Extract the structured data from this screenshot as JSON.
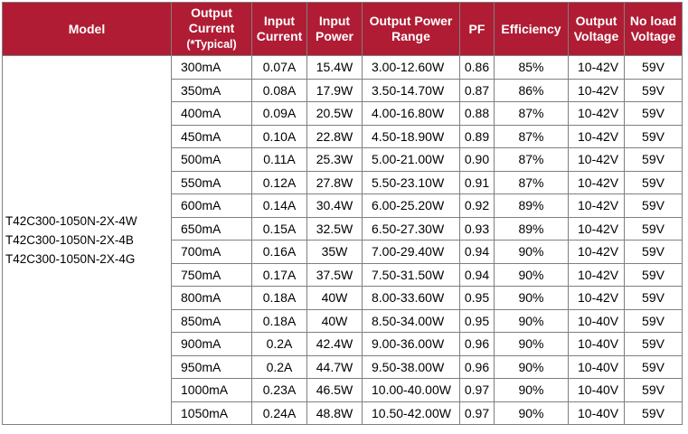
{
  "headers": {
    "model": "Model",
    "output_current_line1": "Output",
    "output_current_line2": "Current",
    "output_current_line3": "(*Typical)",
    "input_current_line1": "Input",
    "input_current_line2": "Current",
    "input_power_line1": "Input",
    "input_power_line2": "Power",
    "output_power_range_line1": "Output Power",
    "output_power_range_line2": "Range",
    "pf": "PF",
    "efficiency": "Efficiency",
    "output_voltage_line1": "Output",
    "output_voltage_line2": "Voltage",
    "no_load_voltage_line1": "No load",
    "no_load_voltage_line2": "Voltage"
  },
  "models": [
    "T42C300-1050N-2X-4W",
    "T42C300-1050N-2X-4B",
    "T42C300-1050N-2X-4G"
  ],
  "rows": [
    {
      "output_current": "300mA",
      "input_current": "0.07A",
      "input_power": "15.4W",
      "output_power_range": "3.00-12.60W",
      "pf": "0.86",
      "efficiency": "85%",
      "output_voltage": "10-42V",
      "no_load_voltage": "59V"
    },
    {
      "output_current": "350mA",
      "input_current": "0.08A",
      "input_power": "17.9W",
      "output_power_range": "3.50-14.70W",
      "pf": "0.87",
      "efficiency": "86%",
      "output_voltage": "10-42V",
      "no_load_voltage": "59V"
    },
    {
      "output_current": "400mA",
      "input_current": "0.09A",
      "input_power": "20.5W",
      "output_power_range": "4.00-16.80W",
      "pf": "0.88",
      "efficiency": "87%",
      "output_voltage": "10-42V",
      "no_load_voltage": "59V"
    },
    {
      "output_current": "450mA",
      "input_current": "0.10A",
      "input_power": "22.8W",
      "output_power_range": "4.50-18.90W",
      "pf": "0.89",
      "efficiency": "87%",
      "output_voltage": "10-42V",
      "no_load_voltage": "59V"
    },
    {
      "output_current": "500mA",
      "input_current": "0.11A",
      "input_power": "25.3W",
      "output_power_range": "5.00-21.00W",
      "pf": "0.90",
      "efficiency": "87%",
      "output_voltage": "10-42V",
      "no_load_voltage": "59V"
    },
    {
      "output_current": "550mA",
      "input_current": "0.12A",
      "input_power": "27.8W",
      "output_power_range": "5.50-23.10W",
      "pf": "0.91",
      "efficiency": "87%",
      "output_voltage": "10-42V",
      "no_load_voltage": "59V"
    },
    {
      "output_current": "600mA",
      "input_current": "0.14A",
      "input_power": "30.4W",
      "output_power_range": "6.00-25.20W",
      "pf": "0.92",
      "efficiency": "89%",
      "output_voltage": "10-42V",
      "no_load_voltage": "59V"
    },
    {
      "output_current": "650mA",
      "input_current": "0.15A",
      "input_power": "32.5W",
      "output_power_range": "6.50-27.30W",
      "pf": "0.93",
      "efficiency": "89%",
      "output_voltage": "10-42V",
      "no_load_voltage": "59V"
    },
    {
      "output_current": "700mA",
      "input_current": "0.16A",
      "input_power": "35W",
      "output_power_range": "7.00-29.40W",
      "pf": "0.94",
      "efficiency": "90%",
      "output_voltage": "10-42V",
      "no_load_voltage": "59V"
    },
    {
      "output_current": "750mA",
      "input_current": "0.17A",
      "input_power": "37.5W",
      "output_power_range": "7.50-31.50W",
      "pf": "0.94",
      "efficiency": "90%",
      "output_voltage": "10-42V",
      "no_load_voltage": "59V"
    },
    {
      "output_current": "800mA",
      "input_current": "0.18A",
      "input_power": "40W",
      "output_power_range": "8.00-33.60W",
      "pf": "0.95",
      "efficiency": "90%",
      "output_voltage": "10-42V",
      "no_load_voltage": "59V"
    },
    {
      "output_current": "850mA",
      "input_current": "0.18A",
      "input_power": "40W",
      "output_power_range": "8.50-34.00W",
      "pf": "0.95",
      "efficiency": "90%",
      "output_voltage": "10-40V",
      "no_load_voltage": "59V"
    },
    {
      "output_current": "900mA",
      "input_current": "0.2A",
      "input_power": "42.4W",
      "output_power_range": "9.00-36.00W",
      "pf": "0.96",
      "efficiency": "90%",
      "output_voltage": "10-40V",
      "no_load_voltage": "59V"
    },
    {
      "output_current": "950mA",
      "input_current": "0.2A",
      "input_power": "44.7W",
      "output_power_range": "9.50-38.00W",
      "pf": "0.96",
      "efficiency": "90%",
      "output_voltage": "10-40V",
      "no_load_voltage": "59V"
    },
    {
      "output_current": "1000mA",
      "input_current": "0.23A",
      "input_power": "46.5W",
      "output_power_range": "10.00-40.00W",
      "pf": "0.97",
      "efficiency": "90%",
      "output_voltage": "10-40V",
      "no_load_voltage": "59V"
    },
    {
      "output_current": "1050mA",
      "input_current": "0.24A",
      "input_power": "48.8W",
      "output_power_range": "10.50-42.00W",
      "pf": "0.97",
      "efficiency": "90%",
      "output_voltage": "10-40V",
      "no_load_voltage": "59V"
    }
  ],
  "colors": {
    "header_bg": "#b01c34",
    "header_text": "#ffffff",
    "border": "#7f7f7f"
  }
}
